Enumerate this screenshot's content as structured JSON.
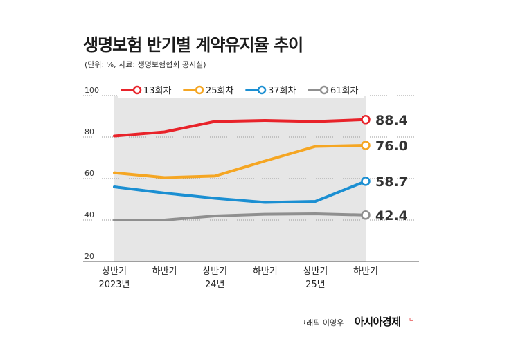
{
  "header": {
    "title": "생명보험 반기별 계약유지율 추이",
    "subtitle": "(단위: %, 자료: 생명보험협회 공시실)"
  },
  "footer": {
    "credit": "그래픽 이영우",
    "brand": "아시아경제",
    "brand_mark": "ㅁ"
  },
  "chart_data": {
    "type": "line",
    "categories": [
      "상반기 2023년",
      "하반기",
      "상반기 24년",
      "하반기",
      "상반기 25년",
      "하반기"
    ],
    "category_labels": [
      [
        "상반기",
        "2023년"
      ],
      [
        "하반기"
      ],
      [
        "상반기",
        "24년"
      ],
      [
        "하반기"
      ],
      [
        "상반기",
        "25년"
      ],
      [
        "하반기"
      ]
    ],
    "ylim": [
      20,
      100
    ],
    "yticks": [
      20,
      40,
      60,
      80,
      100
    ],
    "grid": true,
    "legend_position": "top",
    "series": [
      {
        "name": "13회차",
        "color": "#e8232a",
        "values": [
          80.5,
          82.5,
          87.5,
          88.0,
          87.5,
          88.4
        ],
        "end_label": "88.4"
      },
      {
        "name": "25회차",
        "color": "#f5a623",
        "values": [
          62.8,
          60.5,
          61.2,
          68.5,
          75.5,
          76.0
        ],
        "end_label": "76.0"
      },
      {
        "name": "37회차",
        "color": "#1b8fd2",
        "values": [
          56.0,
          53.0,
          50.5,
          48.5,
          49.0,
          58.7
        ],
        "end_label": "58.7"
      },
      {
        "name": "61회차",
        "color": "#8f8f8f",
        "values": [
          40.0,
          40.0,
          42.0,
          42.8,
          43.0,
          42.4
        ],
        "end_label": "42.4"
      }
    ]
  }
}
